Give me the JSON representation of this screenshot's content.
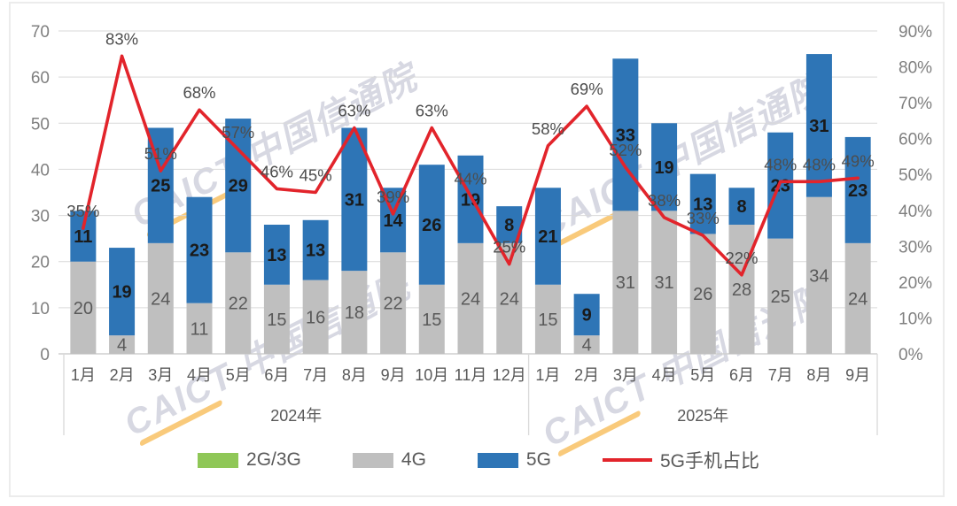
{
  "watermark": {
    "text": "CAICT 中国信通院"
  },
  "legend": {
    "items": [
      {
        "label": "2G/3G",
        "color": "#8FC757",
        "swatch": "box"
      },
      {
        "label": "4G",
        "color": "#BFBFBF",
        "swatch": "box"
      },
      {
        "label": "5G",
        "color": "#2E75B6",
        "swatch": "box"
      },
      {
        "label": "5G手机占比",
        "color": "#E2242B",
        "swatch": "line"
      }
    ]
  },
  "chart_data": {
    "type": "bar",
    "subtype": "stacked-bars-with-percentage-line",
    "grid": true,
    "legend_position": "bottom",
    "categories": [
      "1月",
      "2月",
      "3月",
      "4月",
      "5月",
      "6月",
      "7月",
      "8月",
      "9月",
      "10月",
      "11月",
      "12月",
      "1月",
      "2月",
      "3月",
      "4月",
      "5月",
      "6月",
      "7月",
      "8月",
      "9月"
    ],
    "category_groups": [
      {
        "label": "2024年",
        "span": 12
      },
      {
        "label": "2025年",
        "span": 9
      }
    ],
    "series": [
      {
        "name": "2G/3G",
        "color": "#8FC757",
        "values": [
          0,
          0,
          0,
          0,
          0,
          0,
          0,
          0,
          0,
          0,
          0,
          0,
          0,
          0,
          0,
          0,
          0,
          0,
          0,
          0,
          0
        ]
      },
      {
        "name": "4G",
        "color": "#BFBFBF",
        "values": [
          20,
          4,
          24,
          11,
          22,
          15,
          16,
          18,
          22,
          15,
          24,
          24,
          15,
          4,
          31,
          31,
          26,
          28,
          25,
          34,
          24
        ]
      },
      {
        "name": "5G",
        "color": "#2E75B6",
        "values": [
          11,
          19,
          25,
          23,
          29,
          13,
          13,
          31,
          14,
          26,
          19,
          8,
          21,
          9,
          33,
          19,
          13,
          8,
          23,
          31,
          23
        ]
      }
    ],
    "line_series": {
      "name": "5G手机占比",
      "color": "#E2242B",
      "unit": "%",
      "values": [
        35,
        83,
        51,
        68,
        57,
        46,
        45,
        63,
        39,
        63,
        44,
        25,
        58,
        69,
        52,
        38,
        33,
        22,
        48,
        48,
        49
      ]
    },
    "left_axis": {
      "min": 0,
      "max": 70,
      "step": 10,
      "ticks": [
        0,
        10,
        20,
        30,
        40,
        50,
        60,
        70
      ]
    },
    "right_axis": {
      "min": 0,
      "max": 90,
      "step": 10,
      "ticks": [
        0,
        10,
        20,
        30,
        40,
        50,
        60,
        70,
        80,
        90
      ],
      "tick_suffix": "%"
    }
  }
}
